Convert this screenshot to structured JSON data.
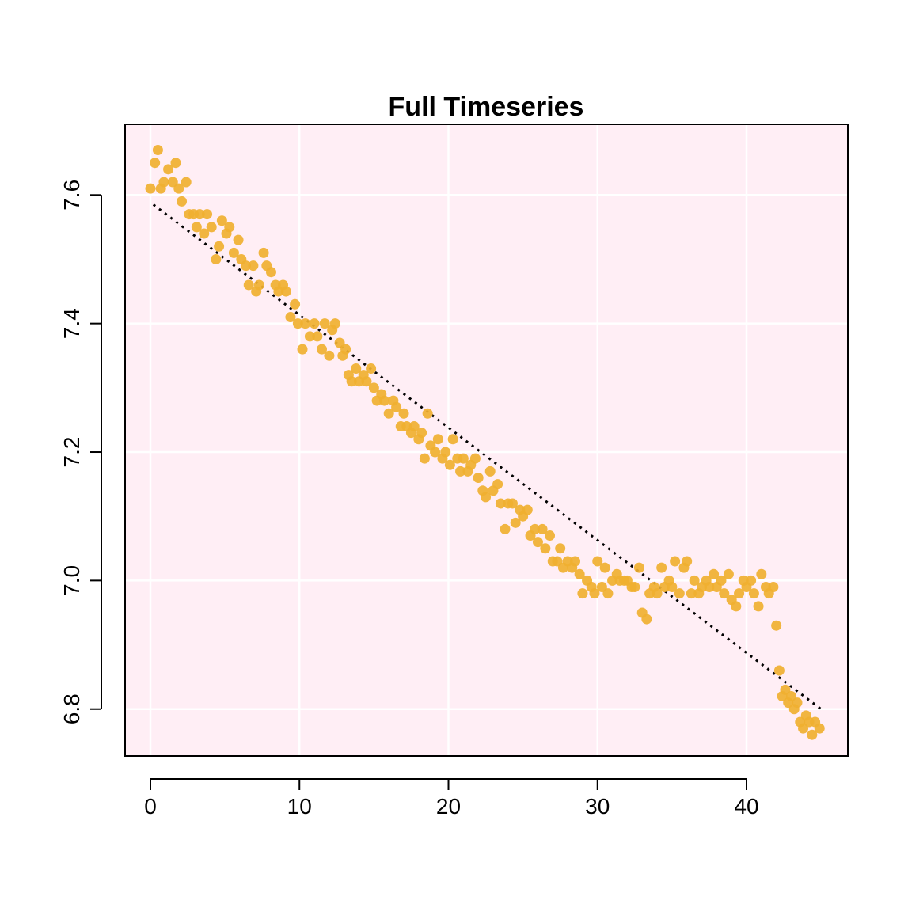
{
  "chart_data": {
    "type": "scatter",
    "title": "Full Timeseries",
    "xlabel": "",
    "ylabel": "",
    "xlim": [
      -1.7,
      46.8
    ],
    "ylim": [
      6.727,
      7.71
    ],
    "x_ticks": [
      0,
      10,
      20,
      30,
      40
    ],
    "y_ticks": [
      6.8,
      7.0,
      7.2,
      7.4,
      7.6
    ],
    "x_tick_labels": [
      "0",
      "10",
      "20",
      "30",
      "40"
    ],
    "y_tick_labels": [
      "6.8",
      "7.0",
      "7.2",
      "7.4",
      "7.6"
    ],
    "grid": true,
    "grid_color": "#ffffff",
    "background_color": "#ffeef5",
    "point_color": "#f0b030",
    "trend_color": "#000000",
    "series": [
      {
        "values": [
          [
            0.0,
            7.61
          ],
          [
            0.3,
            7.65
          ],
          [
            0.5,
            7.67
          ],
          [
            0.7,
            7.61
          ],
          [
            0.9,
            7.62
          ],
          [
            1.2,
            7.64
          ],
          [
            1.5,
            7.62
          ],
          [
            1.7,
            7.65
          ],
          [
            1.9,
            7.61
          ],
          [
            2.1,
            7.59
          ],
          [
            2.4,
            7.62
          ],
          [
            2.6,
            7.57
          ],
          [
            2.9,
            7.57
          ],
          [
            3.1,
            7.55
          ],
          [
            3.3,
            7.57
          ],
          [
            3.6,
            7.54
          ],
          [
            3.8,
            7.57
          ],
          [
            4.1,
            7.55
          ],
          [
            4.4,
            7.5
          ],
          [
            4.6,
            7.52
          ],
          [
            4.8,
            7.56
          ],
          [
            5.1,
            7.54
          ],
          [
            5.3,
            7.55
          ],
          [
            5.6,
            7.51
          ],
          [
            5.9,
            7.53
          ],
          [
            6.1,
            7.5
          ],
          [
            6.4,
            7.49
          ],
          [
            6.6,
            7.46
          ],
          [
            6.9,
            7.49
          ],
          [
            7.1,
            7.45
          ],
          [
            7.3,
            7.46
          ],
          [
            7.6,
            7.51
          ],
          [
            7.8,
            7.49
          ],
          [
            8.1,
            7.48
          ],
          [
            8.4,
            7.46
          ],
          [
            8.6,
            7.45
          ],
          [
            8.9,
            7.46
          ],
          [
            9.1,
            7.45
          ],
          [
            9.4,
            7.41
          ],
          [
            9.7,
            7.43
          ],
          [
            9.9,
            7.4
          ],
          [
            10.2,
            7.36
          ],
          [
            10.4,
            7.4
          ],
          [
            10.7,
            7.38
          ],
          [
            11.0,
            7.4
          ],
          [
            11.2,
            7.38
          ],
          [
            11.5,
            7.36
          ],
          [
            11.7,
            7.4
          ],
          [
            12.0,
            7.35
          ],
          [
            12.2,
            7.39
          ],
          [
            12.4,
            7.4
          ],
          [
            12.7,
            7.37
          ],
          [
            12.9,
            7.35
          ],
          [
            13.1,
            7.36
          ],
          [
            13.3,
            7.32
          ],
          [
            13.5,
            7.31
          ],
          [
            13.8,
            7.33
          ],
          [
            14.0,
            7.31
          ],
          [
            14.3,
            7.32
          ],
          [
            14.5,
            7.31
          ],
          [
            14.8,
            7.33
          ],
          [
            15.0,
            7.3
          ],
          [
            15.2,
            7.28
          ],
          [
            15.5,
            7.29
          ],
          [
            15.7,
            7.28
          ],
          [
            16.0,
            7.26
          ],
          [
            16.3,
            7.28
          ],
          [
            16.5,
            7.27
          ],
          [
            16.8,
            7.24
          ],
          [
            17.0,
            7.26
          ],
          [
            17.2,
            7.24
          ],
          [
            17.5,
            7.23
          ],
          [
            17.7,
            7.24
          ],
          [
            18.0,
            7.22
          ],
          [
            18.2,
            7.23
          ],
          [
            18.4,
            7.19
          ],
          [
            18.6,
            7.26
          ],
          [
            18.8,
            7.21
          ],
          [
            19.1,
            7.2
          ],
          [
            19.3,
            7.22
          ],
          [
            19.6,
            7.19
          ],
          [
            19.8,
            7.2
          ],
          [
            20.1,
            7.18
          ],
          [
            20.3,
            7.22
          ],
          [
            20.6,
            7.19
          ],
          [
            20.8,
            7.17
          ],
          [
            21.0,
            7.19
          ],
          [
            21.3,
            7.17
          ],
          [
            21.5,
            7.18
          ],
          [
            21.8,
            7.19
          ],
          [
            22.0,
            7.16
          ],
          [
            22.3,
            7.14
          ],
          [
            22.5,
            7.13
          ],
          [
            22.8,
            7.17
          ],
          [
            23.0,
            7.14
          ],
          [
            23.3,
            7.15
          ],
          [
            23.5,
            7.12
          ],
          [
            23.8,
            7.08
          ],
          [
            24.0,
            7.12
          ],
          [
            24.3,
            7.12
          ],
          [
            24.5,
            7.09
          ],
          [
            24.8,
            7.11
          ],
          [
            25.0,
            7.1
          ],
          [
            25.3,
            7.11
          ],
          [
            25.5,
            7.07
          ],
          [
            25.8,
            7.08
          ],
          [
            26.0,
            7.06
          ],
          [
            26.3,
            7.08
          ],
          [
            26.5,
            7.05
          ],
          [
            26.8,
            7.07
          ],
          [
            27.0,
            7.03
          ],
          [
            27.3,
            7.03
          ],
          [
            27.5,
            7.05
          ],
          [
            27.7,
            7.02
          ],
          [
            28.0,
            7.03
          ],
          [
            28.3,
            7.02
          ],
          [
            28.5,
            7.03
          ],
          [
            28.8,
            7.01
          ],
          [
            29.0,
            6.98
          ],
          [
            29.3,
            7.0
          ],
          [
            29.6,
            6.99
          ],
          [
            29.8,
            6.98
          ],
          [
            30.0,
            7.03
          ],
          [
            30.3,
            6.99
          ],
          [
            30.5,
            7.02
          ],
          [
            30.7,
            6.98
          ],
          [
            31.0,
            7.0
          ],
          [
            31.3,
            7.01
          ],
          [
            31.5,
            7.0
          ],
          [
            31.8,
            7.0
          ],
          [
            32.0,
            7.0
          ],
          [
            32.3,
            6.99
          ],
          [
            32.5,
            6.99
          ],
          [
            32.8,
            7.02
          ],
          [
            33.0,
            6.95
          ],
          [
            33.3,
            6.94
          ],
          [
            33.5,
            6.98
          ],
          [
            33.8,
            6.99
          ],
          [
            34.0,
            6.98
          ],
          [
            34.3,
            7.02
          ],
          [
            34.5,
            6.99
          ],
          [
            34.8,
            7.0
          ],
          [
            35.0,
            6.99
          ],
          [
            35.2,
            7.03
          ],
          [
            35.5,
            6.98
          ],
          [
            35.8,
            7.02
          ],
          [
            36.0,
            7.03
          ],
          [
            36.3,
            6.98
          ],
          [
            36.5,
            7.0
          ],
          [
            36.8,
            6.98
          ],
          [
            37.0,
            6.99
          ],
          [
            37.3,
            7.0
          ],
          [
            37.5,
            6.99
          ],
          [
            37.8,
            7.01
          ],
          [
            38.0,
            6.99
          ],
          [
            38.3,
            7.0
          ],
          [
            38.5,
            6.98
          ],
          [
            38.8,
            7.01
          ],
          [
            39.0,
            6.97
          ],
          [
            39.3,
            6.96
          ],
          [
            39.5,
            6.98
          ],
          [
            39.8,
            7.0
          ],
          [
            40.0,
            6.99
          ],
          [
            40.3,
            7.0
          ],
          [
            40.5,
            6.98
          ],
          [
            40.8,
            6.96
          ],
          [
            41.0,
            7.01
          ],
          [
            41.3,
            6.99
          ],
          [
            41.5,
            6.98
          ],
          [
            41.8,
            6.99
          ],
          [
            42.0,
            6.93
          ],
          [
            42.2,
            6.86
          ],
          [
            42.4,
            6.82
          ],
          [
            42.6,
            6.83
          ],
          [
            42.8,
            6.81
          ],
          [
            43.0,
            6.82
          ],
          [
            43.2,
            6.8
          ],
          [
            43.4,
            6.81
          ],
          [
            43.6,
            6.78
          ],
          [
            43.8,
            6.77
          ],
          [
            44.0,
            6.79
          ],
          [
            44.2,
            6.78
          ],
          [
            44.4,
            6.76
          ],
          [
            44.6,
            6.78
          ],
          [
            44.9,
            6.77
          ]
        ]
      }
    ],
    "trend_line": {
      "style": "dotted",
      "x": [
        0.2,
        45.0
      ],
      "y": [
        7.585,
        6.8
      ]
    }
  }
}
